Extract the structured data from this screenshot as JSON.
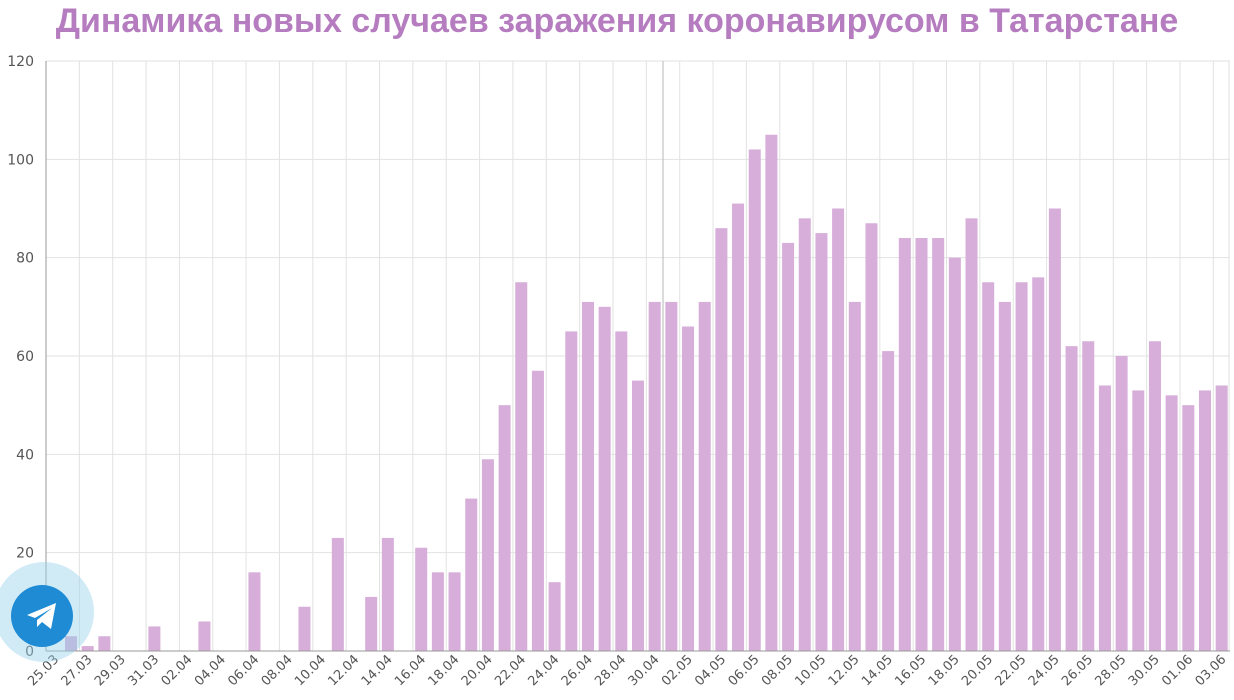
{
  "chart_data": {
    "type": "bar",
    "title": "Динамика новых случаев заражения коронавирусом в Татарстане",
    "xlabel": "",
    "ylabel": "",
    "ylim": [
      0,
      120
    ],
    "yticks": [
      0,
      20,
      40,
      60,
      80,
      100,
      120
    ],
    "bar_color": "#d6aed9",
    "categories": [
      "25.03",
      "26.03",
      "27.03",
      "28.03",
      "29.03",
      "30.03",
      "31.03",
      "01.04",
      "02.04",
      "03.04",
      "04.04",
      "05.04",
      "06.04",
      "07.04",
      "08.04",
      "09.04",
      "10.04",
      "11.04",
      "12.04",
      "13.04",
      "14.04",
      "15.04",
      "16.04",
      "17.04",
      "18.04",
      "19.04",
      "20.04",
      "21.04",
      "22.04",
      "23.04",
      "24.04",
      "25.04",
      "26.04",
      "27.04",
      "28.04",
      "29.04",
      "30.04",
      "01.05",
      "02.05",
      "03.05",
      "04.05",
      "05.05",
      "06.05",
      "07.05",
      "08.05",
      "09.05",
      "10.05",
      "11.05",
      "12.05",
      "13.05",
      "14.05",
      "15.05",
      "16.05",
      "17.05",
      "18.05",
      "19.05",
      "20.05",
      "21.05",
      "22.05",
      "23.05",
      "24.05",
      "25.05",
      "26.05",
      "27.05",
      "28.05",
      "29.05",
      "30.05",
      "31.05",
      "01.06",
      "02.06",
      "03.06"
    ],
    "tick_labels": [
      "25.03",
      "27.03",
      "29.03",
      "31.03",
      "02.04",
      "04.04",
      "06.04",
      "08.04",
      "10.04",
      "12.04",
      "14.04",
      "16.04",
      "18.04",
      "20.04",
      "22.04",
      "24.04",
      "26.04",
      "28.04",
      "30.04",
      "02.05",
      "04.05",
      "06.05",
      "08.05",
      "10.05",
      "12.05",
      "14.05",
      "16.05",
      "18.05",
      "20.05",
      "22.05",
      "24.05",
      "26.05",
      "28.05",
      "30.05",
      "01.06",
      "03.06"
    ],
    "values": [
      0,
      3,
      1,
      3,
      0,
      0,
      5,
      0,
      0,
      6,
      0,
      0,
      16,
      0,
      0,
      9,
      0,
      23,
      0,
      11,
      23,
      0,
      21,
      16,
      16,
      31,
      39,
      50,
      75,
      57,
      14,
      65,
      71,
      70,
      65,
      55,
      71,
      71,
      66,
      71,
      86,
      91,
      102,
      105,
      83,
      88,
      85,
      90,
      71,
      87,
      61,
      84,
      84,
      84,
      80,
      88,
      75,
      71,
      75,
      76,
      90,
      62,
      63,
      54,
      60,
      53,
      63,
      52,
      50,
      53,
      54
    ]
  },
  "widgets": {
    "share_icon": "telegram-icon",
    "share_color": "#1e8bd4"
  }
}
